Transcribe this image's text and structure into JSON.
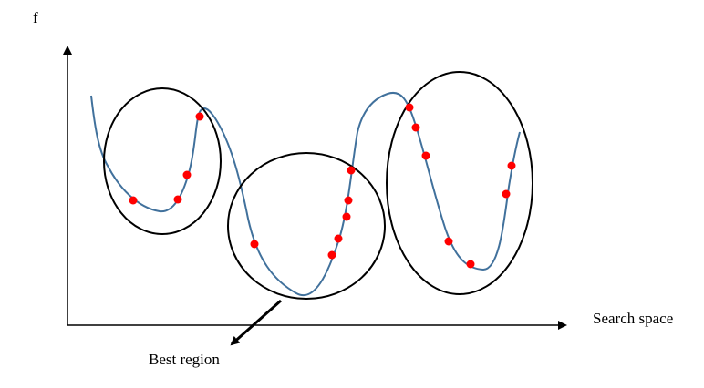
{
  "axis_labels": {
    "y": "f",
    "x": "Search space"
  },
  "annotation": "Best region"
}
